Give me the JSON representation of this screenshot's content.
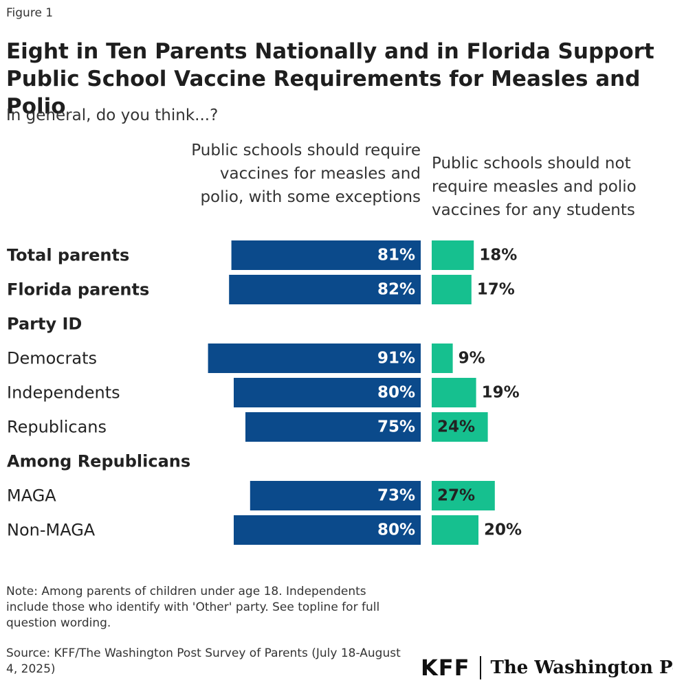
{
  "figure_label": "Figure 1",
  "title": "Eight in Ten Parents Nationally and in Florida Support Public School Vaccine Requirements for Measles and Polio",
  "subtitle": "In general, do you think...?",
  "note": "Note: Among parents of children under age 18. Independents include those who identify with 'Other' party. See topline for full question wording.",
  "source": "Source: KFF/The Washington Post Survey of Parents (July 18-August 4, 2025)",
  "logos": {
    "kff": "KFF",
    "wapo": "The Washington Post"
  },
  "colors": {
    "require": "#0b4a8b",
    "not_require": "#16c08f",
    "text": "#222222"
  },
  "chart_data": {
    "type": "bar",
    "orientation": "horizontal-diverging",
    "series": [
      {
        "name": "Public schools should require vaccines for measles and polio, with some exceptions",
        "color": "#0b4a8b"
      },
      {
        "name": "Public schools should not require measles and polio vaccines for any students",
        "color": "#16c08f"
      }
    ],
    "rows": [
      {
        "label": "Total parents",
        "kind": "data",
        "bold": true,
        "require": 81,
        "not_require": 18,
        "require_label": "81%",
        "not_require_label": "18%"
      },
      {
        "label": "Florida parents",
        "kind": "data",
        "bold": true,
        "require": 82,
        "not_require": 17,
        "require_label": "82%",
        "not_require_label": "17%"
      },
      {
        "label": "Party ID",
        "kind": "header"
      },
      {
        "label": "Democrats",
        "kind": "data",
        "bold": false,
        "require": 91,
        "not_require": 9,
        "require_label": "91%",
        "not_require_label": "9%"
      },
      {
        "label": "Independents",
        "kind": "data",
        "bold": false,
        "require": 80,
        "not_require": 19,
        "require_label": "80%",
        "not_require_label": "19%"
      },
      {
        "label": "Republicans",
        "kind": "data",
        "bold": false,
        "require": 75,
        "not_require": 24,
        "require_label": "75%",
        "not_require_label": "24%"
      },
      {
        "label": "Among Republicans",
        "kind": "header"
      },
      {
        "label": "MAGA",
        "kind": "data",
        "bold": false,
        "require": 73,
        "not_require": 27,
        "require_label": "73%",
        "not_require_label": "27%"
      },
      {
        "label": "Non-MAGA",
        "kind": "data",
        "bold": false,
        "require": 80,
        "not_require": 20,
        "require_label": "80%",
        "not_require_label": "20%"
      }
    ],
    "xlim": [
      0,
      100
    ]
  }
}
